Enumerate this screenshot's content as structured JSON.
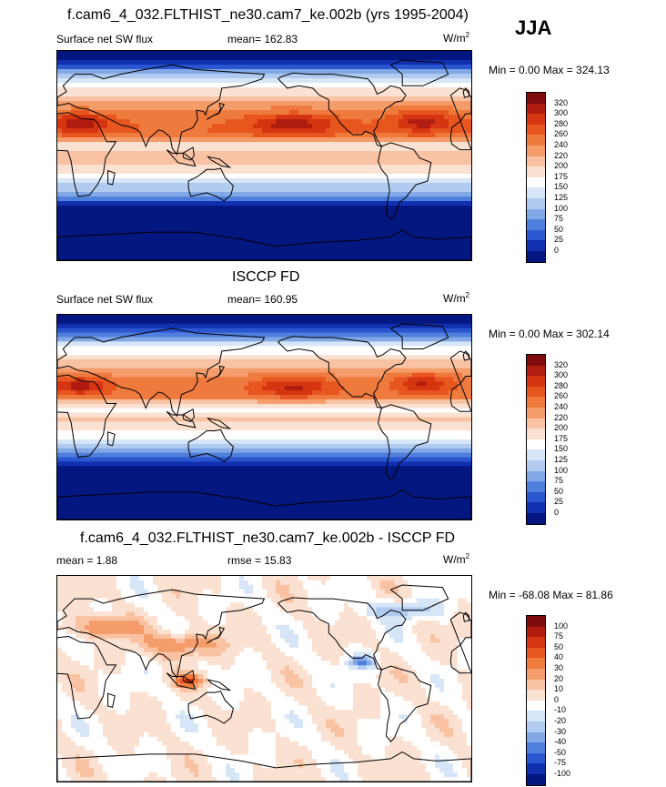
{
  "season": "JJA",
  "panels": [
    {
      "title": "f.cam6_4_032.FLTHIST_ne30.cam7_ke.002b (yrs 1995-2004)",
      "left_label": "Surface net SW flux",
      "center_label": "mean= 162.83",
      "units": "W/m",
      "units_sup": "2",
      "minmax": "Min =   0.00 Max = 324.13",
      "kind": "field",
      "colorbar": {
        "labels": [
          "320",
          "300",
          "280",
          "260",
          "240",
          "220",
          "200",
          "175",
          "150",
          "125",
          "100",
          "75",
          "50",
          "25",
          "0"
        ],
        "colors": [
          "#7f0c0c",
          "#b01d10",
          "#d63512",
          "#e8561f",
          "#ef7a3e",
          "#f59c6b",
          "#f9c3a3",
          "#fbe1d1",
          "#ffffff",
          "#d6e5f7",
          "#b0cbef",
          "#82a8e6",
          "#4f7fdc",
          "#2a56d0",
          "#1030b0",
          "#041680"
        ]
      }
    },
    {
      "title": "ISCCP FD",
      "left_label": "Surface net SW flux",
      "center_label": "mean= 160.95",
      "units": "W/m",
      "units_sup": "2",
      "minmax": "Min =   0.00 Max = 302.14",
      "kind": "field",
      "colorbar": {
        "labels": [
          "320",
          "300",
          "280",
          "260",
          "240",
          "220",
          "200",
          "175",
          "150",
          "125",
          "100",
          "75",
          "50",
          "25",
          "0"
        ],
        "colors": [
          "#7f0c0c",
          "#b01d10",
          "#d63512",
          "#e8561f",
          "#ef7a3e",
          "#f59c6b",
          "#f9c3a3",
          "#fbe1d1",
          "#ffffff",
          "#d6e5f7",
          "#b0cbef",
          "#82a8e6",
          "#4f7fdc",
          "#2a56d0",
          "#1030b0",
          "#041680"
        ]
      }
    },
    {
      "title": "f.cam6_4_032.FLTHIST_ne30.cam7_ke.002b - ISCCP FD",
      "left_label": "mean =   1.88",
      "center_label": "rmse =  15.83",
      "units": "W/m",
      "units_sup": "2",
      "minmax": "Min = -68.08 Max =  81.86",
      "kind": "diff",
      "colorbar": {
        "labels": [
          "100",
          "75",
          "50",
          "40",
          "30",
          "20",
          "10",
          "0",
          "-10",
          "-20",
          "-30",
          "-40",
          "-50",
          "-75",
          "-100"
        ],
        "colors": [
          "#7f0c0c",
          "#b01d10",
          "#d63512",
          "#e8561f",
          "#ef7a3e",
          "#f59c6b",
          "#f9c3a3",
          "#fbe1d1",
          "#ffffff",
          "#d6e5f7",
          "#b0cbef",
          "#82a8e6",
          "#4f7fdc",
          "#2a56d0",
          "#1030b0",
          "#041680"
        ]
      }
    }
  ],
  "chart_data": [
    {
      "type": "heatmap",
      "title": "f.cam6_4_032.FLTHIST_ne30.cam7_ke.002b (yrs 1995-2004)",
      "variable": "Surface net SW flux",
      "units": "W/m^2",
      "season": "JJA",
      "mean": 162.83,
      "min": 0.0,
      "max": 324.13,
      "contour_levels": [
        0,
        25,
        50,
        75,
        100,
        125,
        150,
        175,
        200,
        220,
        240,
        260,
        280,
        300,
        320
      ]
    },
    {
      "type": "heatmap",
      "title": "ISCCP FD",
      "variable": "Surface net SW flux",
      "units": "W/m^2",
      "mean": 160.95,
      "min": 0.0,
      "max": 302.14,
      "contour_levels": [
        0,
        25,
        50,
        75,
        100,
        125,
        150,
        175,
        200,
        220,
        240,
        260,
        280,
        300,
        320
      ]
    },
    {
      "type": "heatmap",
      "title": "f.cam6_4_032.FLTHIST_ne30.cam7_ke.002b - ISCCP FD",
      "units": "W/m^2",
      "mean": 1.88,
      "rmse": 15.83,
      "min": -68.08,
      "max": 81.86,
      "contour_levels": [
        -100,
        -75,
        -50,
        -40,
        -30,
        -20,
        -10,
        0,
        10,
        20,
        30,
        40,
        50,
        75,
        100
      ]
    }
  ]
}
